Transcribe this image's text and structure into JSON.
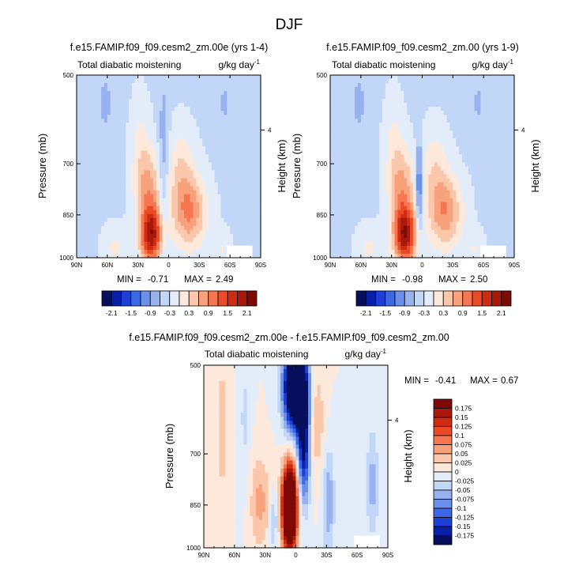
{
  "page": {
    "title": "DJF"
  },
  "colors": {
    "full_scale": [
      "#08105e",
      "#0a1fa8",
      "#1c3fd6",
      "#3a68e6",
      "#6a90ec",
      "#98b2ef",
      "#c2d6f7",
      "#e2edf9",
      "#fde9dc",
      "#fbc7ab",
      "#f7a27c",
      "#f57650",
      "#ea4a26",
      "#cf2a12",
      "#a8190c",
      "#7d0a05"
    ],
    "diff_scale": [
      "#08105e",
      "#0a1fa8",
      "#1c3fd6",
      "#3a68e6",
      "#6a90ec",
      "#98b2ef",
      "#c2d6f7",
      "#e2edf9",
      "#fde9dc",
      "#fbc7ab",
      "#f7a27c",
      "#f57650",
      "#ea4a26",
      "#cf2a12",
      "#a8190c",
      "#7d0a05"
    ]
  },
  "chart_data": [
    {
      "type": "heatmap",
      "title": "f.e15.FAMIP.f09_f09.cesm2_zm.00e (yrs 1-4)",
      "left_string": "Total diabatic moistening",
      "right_string": "g/kg day",
      "right_string_sup": "-1",
      "ylabel": "Pressure (mb)",
      "ylabel_right": "Height (km)",
      "x_ticks": [
        "90N",
        "60N",
        "30N",
        "0",
        "30S",
        "60S",
        "90S"
      ],
      "y_ticks": [
        {
          "value": 500,
          "label": "500"
        },
        {
          "value": 700,
          "label": "700"
        },
        {
          "value": 850,
          "label": "850"
        },
        {
          "value": 1000,
          "label": "1000"
        }
      ],
      "right_ticks": [
        {
          "pressure": 616,
          "label": "4"
        }
      ],
      "xlim": [
        90,
        -90
      ],
      "ylim": [
        500,
        1000
      ],
      "min_label": "MIN = ",
      "min_value": "-0.71",
      "max_label": "MAX = ",
      "max_value": "2.49",
      "colorbar_labels": [
        "-2.1",
        "-1.5",
        "-0.9",
        "-0.3",
        "0.3",
        "0.9",
        "1.5",
        "2.1"
      ],
      "levels": [
        -2.1,
        -1.8,
        -1.5,
        -1.2,
        -0.9,
        -0.6,
        -0.3,
        0,
        0.3,
        0.6,
        0.9,
        1.2,
        1.5,
        1.8,
        2.1
      ],
      "field": "full_e"
    },
    {
      "type": "heatmap",
      "title": "f.e15.FAMIP.f09_f09.cesm2_zm.00 (yrs 1-9)",
      "left_string": "Total diabatic moistening",
      "right_string": "g/kg day",
      "right_string_sup": "-1",
      "ylabel": "Pressure (mb)",
      "ylabel_right": "Height (km)",
      "x_ticks": [
        "90N",
        "60N",
        "30N",
        "0",
        "30S",
        "60S",
        "90S"
      ],
      "y_ticks": [
        {
          "value": 500,
          "label": "500"
        },
        {
          "value": 700,
          "label": "700"
        },
        {
          "value": 850,
          "label": "850"
        },
        {
          "value": 1000,
          "label": "1000"
        }
      ],
      "right_ticks": [
        {
          "pressure": 616,
          "label": "4"
        }
      ],
      "xlim": [
        90,
        -90
      ],
      "ylim": [
        500,
        1000
      ],
      "min_label": "MIN = ",
      "min_value": "-0.98",
      "max_label": "MAX = ",
      "max_value": "2.50",
      "colorbar_labels": [
        "-2.1",
        "-1.5",
        "-0.9",
        "-0.3",
        "0.3",
        "0.9",
        "1.5",
        "2.1"
      ],
      "levels": [
        -2.1,
        -1.8,
        -1.5,
        -1.2,
        -0.9,
        -0.6,
        -0.3,
        0,
        0.3,
        0.6,
        0.9,
        1.2,
        1.5,
        1.8,
        2.1
      ],
      "field": "full_c"
    },
    {
      "type": "heatmap",
      "title": "f.e15.FAMIP.f09_f09.cesm2_zm.00e - f.e15.FAMIP.f09_f09.cesm2_zm.00",
      "left_string": "Total diabatic moistening",
      "right_string": "g/kg day",
      "right_string_sup": "-1",
      "ylabel": "Pressure (mb)",
      "ylabel_right": "Height (km)",
      "x_ticks": [
        "90N",
        "60N",
        "30N",
        "0",
        "30S",
        "60S",
        "90S"
      ],
      "y_ticks": [
        {
          "value": 500,
          "label": "500"
        },
        {
          "value": 700,
          "label": "700"
        },
        {
          "value": 850,
          "label": "850"
        },
        {
          "value": 1000,
          "label": "1000"
        }
      ],
      "right_ticks": [
        {
          "pressure": 616,
          "label": "4"
        }
      ],
      "xlim": [
        90,
        -90
      ],
      "ylim": [
        500,
        1000
      ],
      "min_label": "MIN = ",
      "min_value": "-0.41",
      "max_label": "MAX = ",
      "max_value": "0.67",
      "colorbar_labels": [
        "0.175",
        "0.15",
        "0.125",
        "0.1",
        "0.075",
        "0.05",
        "0.025",
        "0",
        "-0.025",
        "-0.05",
        "-0.075",
        "-0.1",
        "-0.125",
        "-0.15",
        "-0.175"
      ],
      "levels": [
        -0.175,
        -0.15,
        -0.125,
        -0.1,
        -0.075,
        -0.05,
        -0.025,
        0,
        0.025,
        0.05,
        0.075,
        0.1,
        0.125,
        0.15,
        0.175
      ],
      "field": "diff"
    }
  ]
}
